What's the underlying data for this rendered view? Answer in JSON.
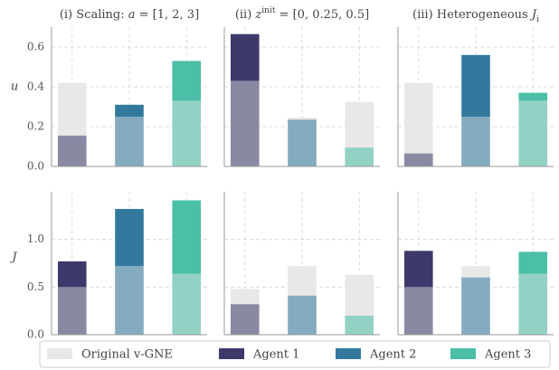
{
  "chart_data": [
    {
      "type": "bar",
      "title": [
        {
          "text": "(i) Scaling: "
        },
        {
          "text": "a",
          "style": "italic"
        },
        {
          "text": " = [1, 2, 3]"
        }
      ],
      "ylabel": "u",
      "ytick_labels": true,
      "original": [
        0.42,
        0.25,
        0.33
      ],
      "values": [
        0.155,
        0.31,
        0.53
      ],
      "colors": [
        "#3d3a6b",
        "#33799e",
        "#4bbfa8"
      ],
      "ylim": [
        0,
        0.7
      ],
      "yticks": [
        {
          "value": 0,
          "label": "0.0"
        },
        0.2,
        0.4,
        0.6
      ],
      "grid": true
    },
    {
      "type": "bar",
      "title": [
        {
          "text": "(ii) "
        },
        {
          "text": "z",
          "style": "italic"
        },
        {
          "text": "init",
          "style": "sup"
        },
        {
          "text": " = [0, 0.25, 0.5]"
        }
      ],
      "ytick_labels": false,
      "original": [
        0.43,
        0.245,
        0.325
      ],
      "values": [
        0.665,
        0.235,
        0.095
      ],
      "colors": [
        "#3d3a6b",
        "#33799e",
        "#4bbfa8"
      ],
      "ylim": [
        0,
        0.7
      ],
      "yticks": [
        0,
        0.2,
        0.4,
        0.6
      ],
      "grid": true
    },
    {
      "type": "bar",
      "title": [
        {
          "text": "(iii) Heterogeneous  "
        },
        {
          "text": "J",
          "style": "italic"
        },
        {
          "text": "i",
          "style": "sub"
        }
      ],
      "ytick_labels": false,
      "original": [
        0.42,
        0.25,
        0.33
      ],
      "values": [
        0.065,
        0.56,
        0.37
      ],
      "colors": [
        "#3d3a6b",
        "#33799e",
        "#4bbfa8"
      ],
      "ylim": [
        0,
        0.7
      ],
      "yticks": [
        0,
        0.2,
        0.4,
        0.6
      ],
      "grid": true
    },
    {
      "type": "bar",
      "ylabel": "J",
      "ytick_labels": true,
      "original": [
        0.5,
        0.72,
        0.64
      ],
      "values": [
        0.77,
        1.32,
        1.41
      ],
      "colors": [
        "#3d3a6b",
        "#33799e",
        "#4bbfa8"
      ],
      "ylim": [
        0,
        1.5
      ],
      "yticks": [
        {
          "value": 0,
          "label": "0.0"
        },
        0.5,
        {
          "value": 1,
          "label": "1.0"
        }
      ],
      "grid": true
    },
    {
      "type": "bar",
      "ytick_labels": false,
      "original": [
        0.48,
        0.72,
        0.63
      ],
      "values": [
        0.32,
        0.41,
        0.2
      ],
      "colors": [
        "#3d3a6b",
        "#33799e",
        "#4bbfa8"
      ],
      "ylim": [
        0,
        1.5
      ],
      "yticks": [
        0,
        0.5,
        1
      ],
      "grid": true
    },
    {
      "type": "bar",
      "ytick_labels": false,
      "original": [
        0.5,
        0.72,
        0.64
      ],
      "values": [
        0.88,
        0.6,
        0.87
      ],
      "colors": [
        "#3d3a6b",
        "#33799e",
        "#4bbfa8"
      ],
      "ylim": [
        0,
        1.5
      ],
      "yticks": [
        0,
        0.5,
        1
      ],
      "grid": true
    }
  ],
  "legend": [
    {
      "name": "Original v-GNE",
      "color": "#e8e8e8"
    },
    {
      "name": "Agent 1",
      "color": "#3d3a6b"
    },
    {
      "name": "Agent 2",
      "color": "#33799e"
    },
    {
      "name": "Agent 3",
      "color": "#4bbfa8"
    }
  ]
}
